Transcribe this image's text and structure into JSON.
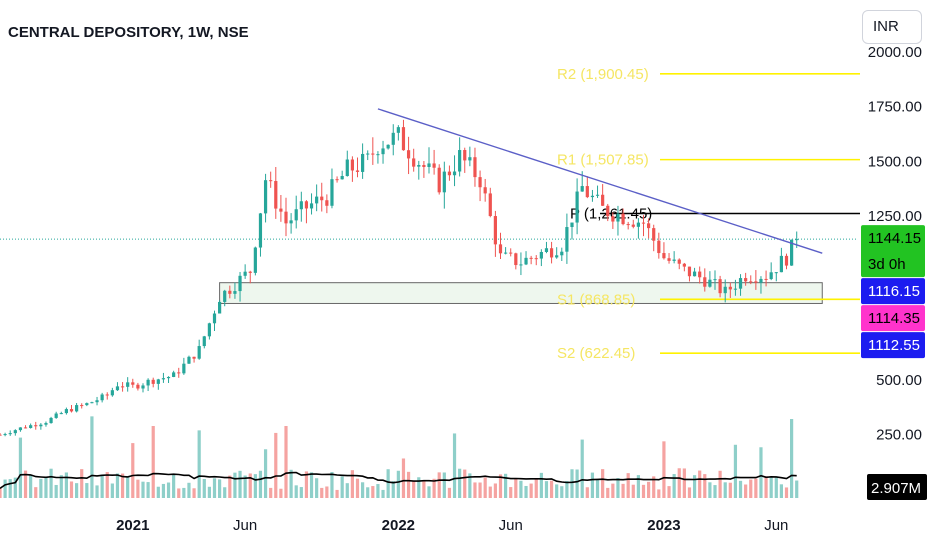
{
  "title": "CENTRAL DEPOSITORY, 1W, NSE",
  "currency": "INR",
  "colors": {
    "up": "#26a69a",
    "down": "#ef5350",
    "trendline": "#5b5fc7",
    "pivot_level": "#fff200",
    "pivot_text": "#f5e663",
    "pivot_p": "#000000",
    "vol_up": "#8ecfc9",
    "vol_down": "#f5a3a1",
    "zone_fill": "#eef7ee",
    "zone_border": "#666666"
  },
  "price_axis": {
    "ticks": [
      {
        "value": 250,
        "label": "250.00"
      },
      {
        "value": 500,
        "label": "500.00"
      },
      {
        "value": 1250,
        "label": "1250.00"
      },
      {
        "value": 1500,
        "label": "1500.00"
      },
      {
        "value": 1750,
        "label": "1750.00"
      },
      {
        "value": 2000,
        "label": "2000.00"
      }
    ]
  },
  "time_axis": {
    "labels": [
      {
        "date": "2021-01-04",
        "text": "2021",
        "bold": true
      },
      {
        "date": "2021-06-07",
        "text": "Jun",
        "bold": false
      },
      {
        "date": "2022-01-03",
        "text": "2022",
        "bold": true
      },
      {
        "date": "2022-06-06",
        "text": "Jun",
        "bold": false
      },
      {
        "date": "2023-01-02",
        "text": "2023",
        "bold": true
      },
      {
        "date": "2023-06-05",
        "text": "Jun",
        "bold": false
      }
    ]
  },
  "price_tags": [
    {
      "text": "1144.15",
      "sub": "3d 0h",
      "bg": "#22c322",
      "fg": "#000000"
    },
    {
      "text": "1116.15",
      "bg": "#1c1cf0",
      "fg": "#ffffff"
    },
    {
      "text": "1114.35",
      "bg": "#ff33cc",
      "fg": "#000000"
    },
    {
      "text": "1112.55",
      "bg": "#1c1cf0",
      "fg": "#ffffff"
    }
  ],
  "volume_tag": {
    "text": "2.907M",
    "bg": "#000000",
    "fg": "#ffffff"
  },
  "chart_data": {
    "type": "candlestick",
    "timeframe": "1W",
    "x_range": [
      "2020-07-06",
      "2023-09-25"
    ],
    "last_price": 1144.15,
    "pivots": [
      {
        "name": "R2",
        "label": "R2 (1,900.45)",
        "value": 1900.45
      },
      {
        "name": "R1",
        "label": "R1 (1,507.85)",
        "value": 1507.85
      },
      {
        "name": "P",
        "label": "P (1,261.45)",
        "value": 1261.45
      },
      {
        "name": "S1",
        "label": "S1 (868.85)",
        "value": 868.85
      },
      {
        "name": "S2",
        "label": "S2 (622.45)",
        "value": 622.45
      }
    ],
    "trendline": {
      "start": {
        "date": "2021-12-06",
        "price": 1740
      },
      "end": {
        "date": "2023-08-07",
        "price": 1080
      }
    },
    "support_zone": {
      "start_date": "2021-05-03",
      "end_date": "2023-08-07",
      "top": 945,
      "bottom": 850
    },
    "volume_ma_note": "moving average of volume",
    "candles": [
      {
        "d": "2020-07-06",
        "c": 250
      },
      {
        "d": "2020-08-03",
        "c": 280
      },
      {
        "d": "2020-09-07",
        "c": 310
      },
      {
        "d": "2020-10-05",
        "c": 360
      },
      {
        "d": "2020-11-02",
        "c": 390
      },
      {
        "d": "2020-11-30",
        "c": 430
      },
      {
        "d": "2020-12-14",
        "c": 480
      },
      {
        "d": "2021-01-04",
        "c": 470
      },
      {
        "d": "2021-02-01",
        "c": 500
      },
      {
        "d": "2021-03-01",
        "c": 520
      },
      {
        "d": "2021-04-05",
        "c": 640
      },
      {
        "d": "2021-05-03",
        "c": 880
      },
      {
        "d": "2021-05-31",
        "c": 960
      },
      {
        "d": "2021-06-14",
        "c": 1000
      },
      {
        "d": "2021-07-05",
        "c": 1420
      },
      {
        "d": "2021-08-02",
        "c": 1220
      },
      {
        "d": "2021-08-30",
        "c": 1290
      },
      {
        "d": "2021-09-27",
        "c": 1340
      },
      {
        "d": "2021-10-25",
        "c": 1460
      },
      {
        "d": "2021-11-22",
        "c": 1500
      },
      {
        "d": "2021-12-06",
        "c": 1580
      },
      {
        "d": "2022-01-03",
        "c": 1610
      },
      {
        "d": "2022-01-31",
        "c": 1500
      },
      {
        "d": "2022-02-28",
        "c": 1400
      },
      {
        "d": "2022-03-28",
        "c": 1520
      },
      {
        "d": "2022-04-25",
        "c": 1420
      },
      {
        "d": "2022-05-23",
        "c": 1060
      },
      {
        "d": "2022-06-20",
        "c": 1040
      },
      {
        "d": "2022-07-18",
        "c": 1080
      },
      {
        "d": "2022-08-15",
        "c": 1120
      },
      {
        "d": "2022-09-12",
        "c": 1380
      },
      {
        "d": "2022-10-10",
        "c": 1280
      },
      {
        "d": "2022-11-07",
        "c": 1250
      },
      {
        "d": "2022-12-05",
        "c": 1220
      },
      {
        "d": "2023-01-02",
        "c": 1060
      },
      {
        "d": "2023-01-30",
        "c": 1000
      },
      {
        "d": "2023-02-27",
        "c": 960
      },
      {
        "d": "2023-03-27",
        "c": 900
      },
      {
        "d": "2023-04-24",
        "c": 980
      },
      {
        "d": "2023-05-22",
        "c": 980
      },
      {
        "d": "2023-06-19",
        "c": 1060
      },
      {
        "d": "2023-07-03",
        "c": 1144
      }
    ]
  }
}
